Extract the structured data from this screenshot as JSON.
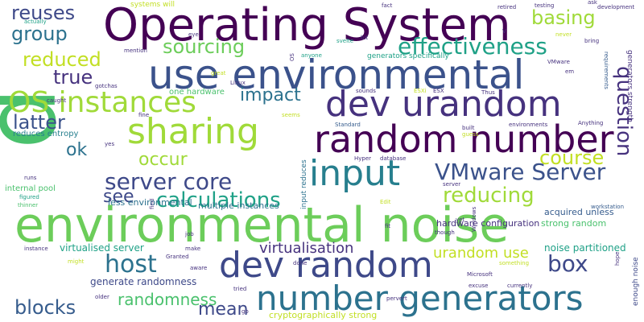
{
  "palette": {
    "c1": "#440154",
    "c2": "#46327e",
    "c3": "#365c8d",
    "c4": "#277f8e",
    "c5": "#1fa187",
    "c6": "#4ac16d",
    "c7": "#a0da39",
    "c8": "#fde725"
  },
  "words": [
    {
      "text": "p"
    },
    {
      "text": "environmental noise"
    },
    {
      "text": "Operating System"
    },
    {
      "text": "use environmental"
    },
    {
      "text": "random number"
    },
    {
      "text": "dev urandom"
    },
    {
      "text": "dev random"
    },
    {
      "text": "input"
    },
    {
      "text": "sharing"
    },
    {
      "text": "number generators"
    },
    {
      "text": "OS instances"
    },
    {
      "text": "VMware Server"
    },
    {
      "text": "effectiveness"
    },
    {
      "text": "server core"
    },
    {
      "text": "question"
    },
    {
      "text": "calculations"
    },
    {
      "text": "reducing"
    },
    {
      "text": "course"
    },
    {
      "text": "basing"
    },
    {
      "text": "sourcing"
    },
    {
      "text": "reduced"
    },
    {
      "text": "reuses"
    },
    {
      "text": "group"
    },
    {
      "text": "true"
    },
    {
      "text": "latter"
    },
    {
      "text": "impact"
    },
    {
      "text": "ok"
    },
    {
      "text": "occur"
    },
    {
      "text": "see"
    },
    {
      "text": "host"
    },
    {
      "text": "box"
    },
    {
      "text": "blocks"
    },
    {
      "text": "mean"
    },
    {
      "text": "randomness"
    },
    {
      "text": "virtualisation"
    },
    {
      "text": "urandom use"
    },
    {
      "text": "noise partitioned"
    },
    {
      "text": "virtualised server"
    },
    {
      "text": "generate randomness"
    },
    {
      "text": "cryptographically strong"
    },
    {
      "text": "multiple instances"
    },
    {
      "text": "less environmental"
    },
    {
      "text": "hardware configuration"
    },
    {
      "text": "acquired unless"
    },
    {
      "text": "strong random"
    },
    {
      "text": "one hardware"
    },
    {
      "text": "reduces entropy"
    },
    {
      "text": "internal pool"
    },
    {
      "text": "systems will"
    },
    {
      "text": "generators specifically"
    },
    {
      "text": "generators strength"
    },
    {
      "text": "input reduces"
    },
    {
      "text": "enough noise"
    },
    {
      "text": "development"
    },
    {
      "text": "requirements"
    },
    {
      "text": "workstation"
    },
    {
      "text": "environments"
    },
    {
      "text": "Anything"
    },
    {
      "text": "Microsoft"
    },
    {
      "text": "something"
    },
    {
      "text": "currently"
    },
    {
      "text": "Standard"
    },
    {
      "text": "database"
    },
    {
      "text": "actually"
    },
    {
      "text": "mention"
    },
    {
      "text": "gotchas"
    },
    {
      "text": "thinner"
    },
    {
      "text": "figured"
    },
    {
      "text": "Granted"
    },
    {
      "text": "instance"
    },
    {
      "text": "anyone"
    },
    {
      "text": "testing"
    },
    {
      "text": "retired"
    },
    {
      "text": "VMware"
    },
    {
      "text": "Windows"
    },
    {
      "text": "pervert"
    },
    {
      "text": "caught"
    },
    {
      "text": "sounds"
    },
    {
      "text": "though"
    },
    {
      "text": "excuse"
    },
    {
      "text": "svelte"
    },
    {
      "text": "built"
    },
    {
      "text": "guess"
    },
    {
      "text": "great"
    },
    {
      "text": "never"
    },
    {
      "text": "bring"
    },
    {
      "text": "Linux"
    },
    {
      "text": "might"
    },
    {
      "text": "aware"
    },
    {
      "text": "older"
    },
    {
      "text": "tried"
    },
    {
      "text": "Hyper"
    },
    {
      "text": "server"
    },
    {
      "text": "fact"
    },
    {
      "text": "ask"
    },
    {
      "text": "eye"
    },
    {
      "text": "bit"
    },
    {
      "text": "fine"
    },
    {
      "text": "yes"
    },
    {
      "text": "seems"
    },
    {
      "text": "runs"
    },
    {
      "text": "find"
    },
    {
      "text": "job"
    },
    {
      "text": "make"
    },
    {
      "text": "done"
    },
    {
      "text": "fit"
    },
    {
      "text": "yet"
    },
    {
      "text": "Edit"
    },
    {
      "text": "hope"
    },
    {
      "text": "Thus"
    },
    {
      "text": "ESXi"
    },
    {
      "text": "ESX"
    },
    {
      "text": "em"
    },
    {
      "text": "OS"
    },
    {
      "text": "V"
    },
    {
      "text": "go"
    }
  ]
}
